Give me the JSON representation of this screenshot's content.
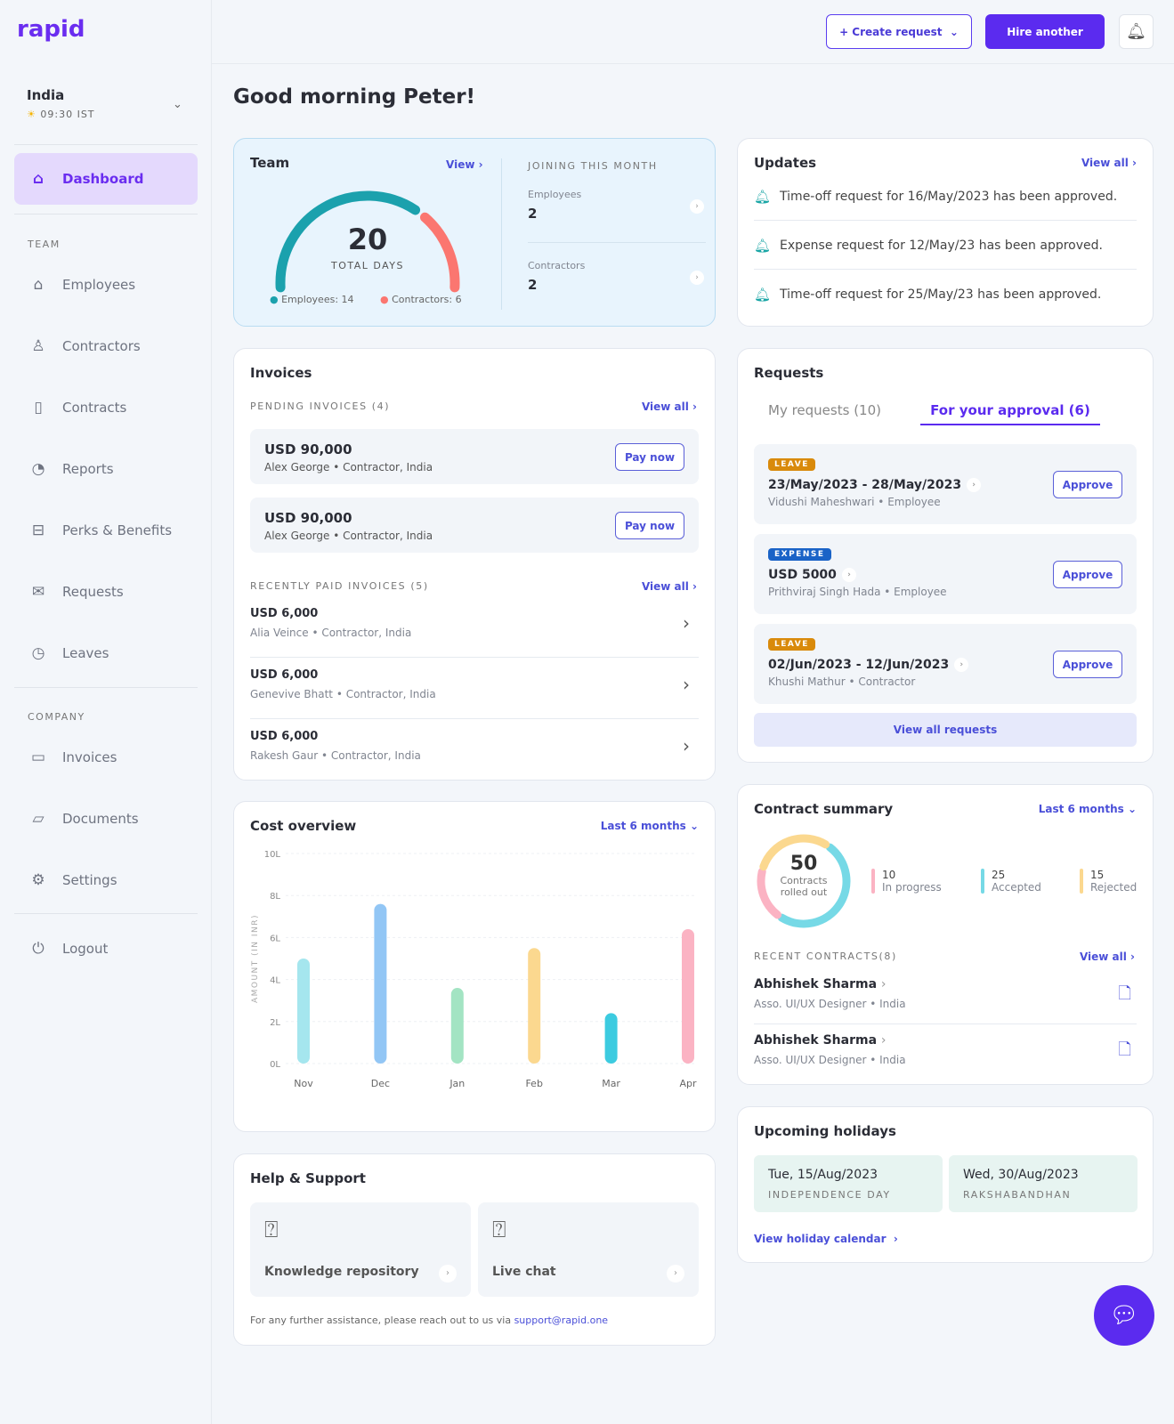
{
  "app": {
    "logo": "rapid"
  },
  "location": {
    "country": "India",
    "time": "09:30 IST"
  },
  "sidebar": {
    "dashboard": "Dashboard",
    "team_label": "TEAM",
    "company_label": "COMPANY",
    "items": [
      {
        "label": "Employees",
        "icon": "home-icon"
      },
      {
        "label": "Contractors",
        "icon": "user-icon"
      },
      {
        "label": "Contracts",
        "icon": "file-icon"
      },
      {
        "label": "Reports",
        "icon": "pie-chart-icon"
      },
      {
        "label": "Perks & Benefits",
        "icon": "gift-icon"
      },
      {
        "label": "Requests",
        "icon": "mail-icon"
      },
      {
        "label": "Leaves",
        "icon": "clock-icon"
      }
    ],
    "company_items": [
      {
        "label": "Invoices",
        "icon": "card-icon"
      },
      {
        "label": "Documents",
        "icon": "folder-icon"
      },
      {
        "label": "Settings",
        "icon": "gear-icon"
      }
    ],
    "logout": "Logout"
  },
  "header": {
    "create_request": "+ Create request",
    "hire": "Hire another"
  },
  "greeting": "Good morning Peter!",
  "team": {
    "title": "Team",
    "view": "View",
    "total": "20",
    "total_label": "TOTAL DAYS",
    "employees_legend": "Employees: 14",
    "contractors_legend": "Contractors: 6",
    "employees": 14,
    "contractors": 6,
    "colors": {
      "employees": "#1ba1ad",
      "contractors": "#fb7670"
    },
    "joining_title": "JOINING THIS MONTH",
    "joining": [
      {
        "label": "Employees",
        "value": "2"
      },
      {
        "label": "Contractors",
        "value": "2"
      }
    ]
  },
  "updates": {
    "title": "Updates",
    "view_all": "View all",
    "items": [
      "Time-off request for 16/May/2023 has been approved.",
      "Expense request for 12/May/23 has been approved.",
      "Time-off request for 25/May/23 has been approved."
    ]
  },
  "invoices": {
    "title": "Invoices",
    "pending_label": "PENDING INVOICES (4)",
    "view_all": "View all",
    "pay_now": "Pay now",
    "pending": [
      {
        "amount": "USD 90,000",
        "sub": "Alex George • Contractor, India"
      },
      {
        "amount": "USD 90,000",
        "sub": "Alex George • Contractor, India"
      }
    ],
    "paid_label": "RECENTLY PAID INVOICES (5)",
    "paid": [
      {
        "amount": "USD 6,000",
        "sub": "Alia Veince • Contractor, India"
      },
      {
        "amount": "USD 6,000",
        "sub": "Genevive Bhatt • Contractor, India"
      },
      {
        "amount": "USD 6,000",
        "sub": "Rakesh Gaur • Contractor, India"
      }
    ]
  },
  "requests": {
    "title": "Requests",
    "tabs": [
      "My requests (10)",
      "For your approval (6)"
    ],
    "approve": "Approve",
    "view_all": "View all requests",
    "items": [
      {
        "tag": "LEAVE",
        "tag_color": "#d98a0b",
        "title": "23/May/2023 - 28/May/2023",
        "sub": "Vidushi Maheshwari • Employee"
      },
      {
        "tag": "EXPENSE",
        "tag_color": "#1a63c7",
        "title": "USD 5000",
        "sub": "Prithviraj Singh Hada • Employee"
      },
      {
        "tag": "LEAVE",
        "tag_color": "#d98a0b",
        "title": "02/Jun/2023 - 12/Jun/2023",
        "sub": "Khushi  Mathur • Contractor"
      }
    ]
  },
  "cost": {
    "title": "Cost overview",
    "period": "Last 6 months"
  },
  "chart_data": {
    "type": "bar",
    "ylabel": "AMOUNT (IN INR)",
    "categories": [
      "Nov",
      "Dec",
      "Jan",
      "Feb",
      "Mar",
      "Apr"
    ],
    "values": [
      5.0,
      7.6,
      3.6,
      5.5,
      2.4,
      6.4
    ],
    "unit": "L",
    "yticks": [
      "0L",
      "2L",
      "4L",
      "6L",
      "8L",
      "10L"
    ],
    "ylim": [
      0,
      10
    ],
    "grid": true,
    "colors": [
      "#a5e6ee",
      "#92c6f5",
      "#a3e4c3",
      "#fbd88f",
      "#3ccbe0",
      "#fbb3c3"
    ]
  },
  "contracts": {
    "title": "Contract summary",
    "period": "Last 6 months",
    "total": "50",
    "total_label_1": "Contracts",
    "total_label_2": "rolled out",
    "legend": [
      {
        "value": "10",
        "label": "In progress",
        "color": "#fbb3c3"
      },
      {
        "value": "25",
        "label": "Accepted",
        "color": "#76d9e6"
      },
      {
        "value": "15",
        "label": "Rejected",
        "color": "#fbd88f"
      }
    ],
    "recent_label": "RECENT CONTRACTS(8)",
    "view_all": "View all",
    "recent": [
      {
        "name": "Abhishek Sharma",
        "sub": "Asso. UI/UX Designer • India"
      },
      {
        "name": "Abhishek Sharma",
        "sub": "Asso. UI/UX Designer • India"
      }
    ]
  },
  "holidays": {
    "title": "Upcoming holidays",
    "items": [
      {
        "date": "Tue, 15/Aug/2023",
        "name": "INDEPENDENCE DAY"
      },
      {
        "date": "Wed, 30/Aug/2023",
        "name": "RAKSHABANDHAN"
      }
    ],
    "calendar_link": "View holiday calendar"
  },
  "help": {
    "title": "Help & Support",
    "items": [
      "Knowledge repository",
      "Live chat"
    ],
    "note": "For any further assistance, please reach out to us via ",
    "email": "support@rapid.one"
  }
}
